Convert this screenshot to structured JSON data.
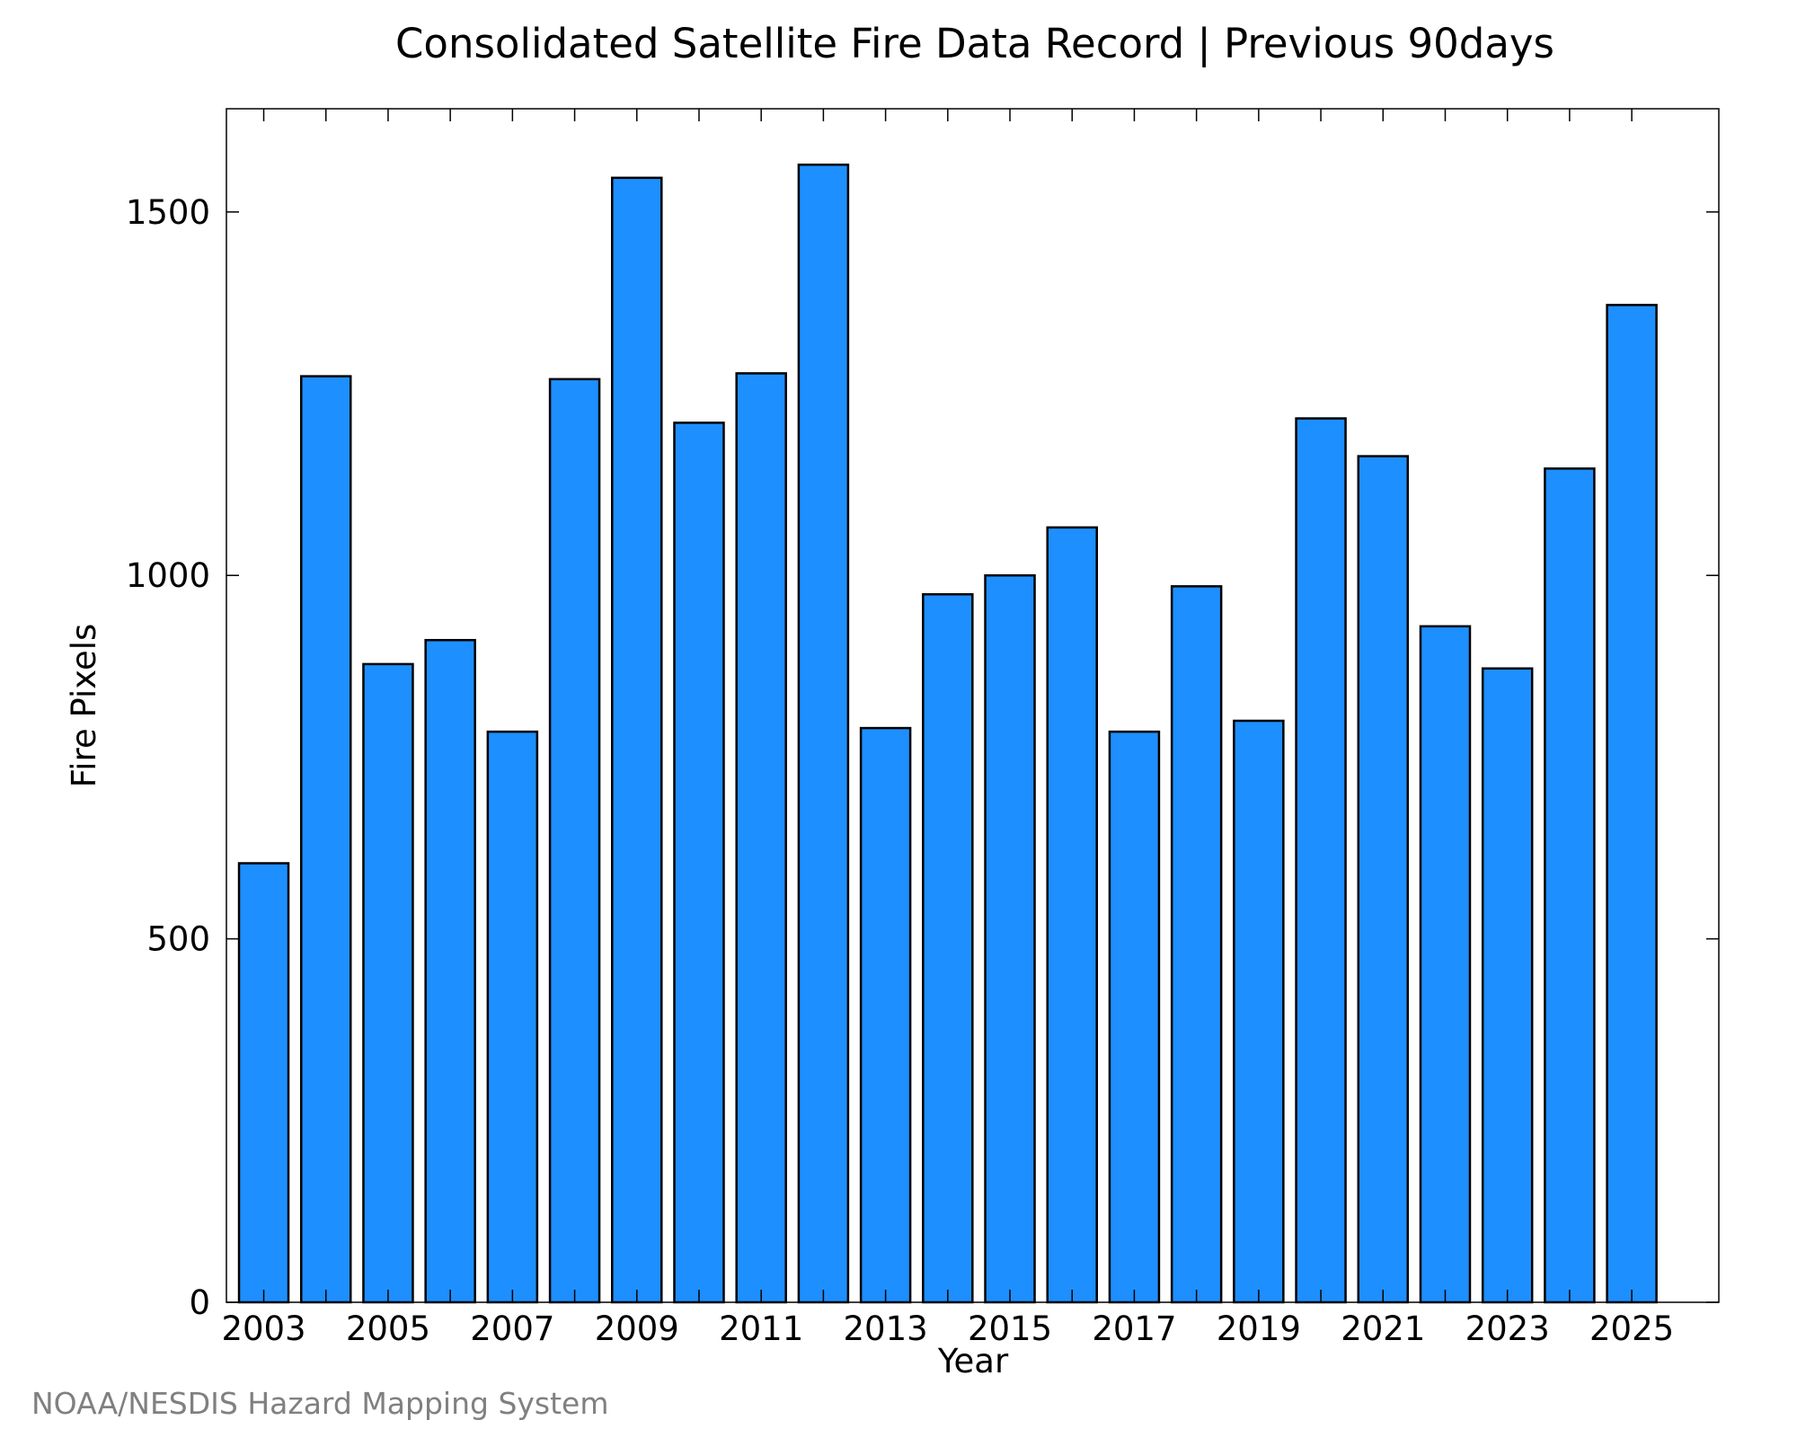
{
  "colors": {
    "bar_fill": "#1e8fff",
    "bar_stroke": "#000000",
    "credit_text": "#808080"
  },
  "credit": "NOAA/NESDIS Hazard Mapping System",
  "chart_data": {
    "type": "bar",
    "title": "Consolidated Satellite Fire Data Record | Previous 90days",
    "xlabel": "Year",
    "ylabel": "Fire Pixels",
    "categories": [
      2003,
      2004,
      2005,
      2006,
      2007,
      2008,
      2009,
      2010,
      2011,
      2012,
      2013,
      2014,
      2015,
      2016,
      2017,
      2018,
      2019,
      2020,
      2021,
      2022,
      2023,
      2024,
      2025
    ],
    "values": [
      604,
      1274,
      878,
      911,
      785,
      1270,
      1547,
      1210,
      1278,
      1565,
      790,
      974,
      1000,
      1066,
      785,
      985,
      800,
      1216,
      1164,
      930,
      872,
      1147,
      1372
    ],
    "x_tick_labels": [
      "2003",
      "2005",
      "2007",
      "2009",
      "2011",
      "2013",
      "2015",
      "2017",
      "2019",
      "2021",
      "2023",
      "2025"
    ],
    "y_ticks": [
      0,
      500,
      1000,
      1500
    ],
    "ylim": [
      0,
      1642
    ],
    "xlim": [
      2002.4,
      2026.4
    ],
    "grid": false,
    "legend": "none"
  }
}
